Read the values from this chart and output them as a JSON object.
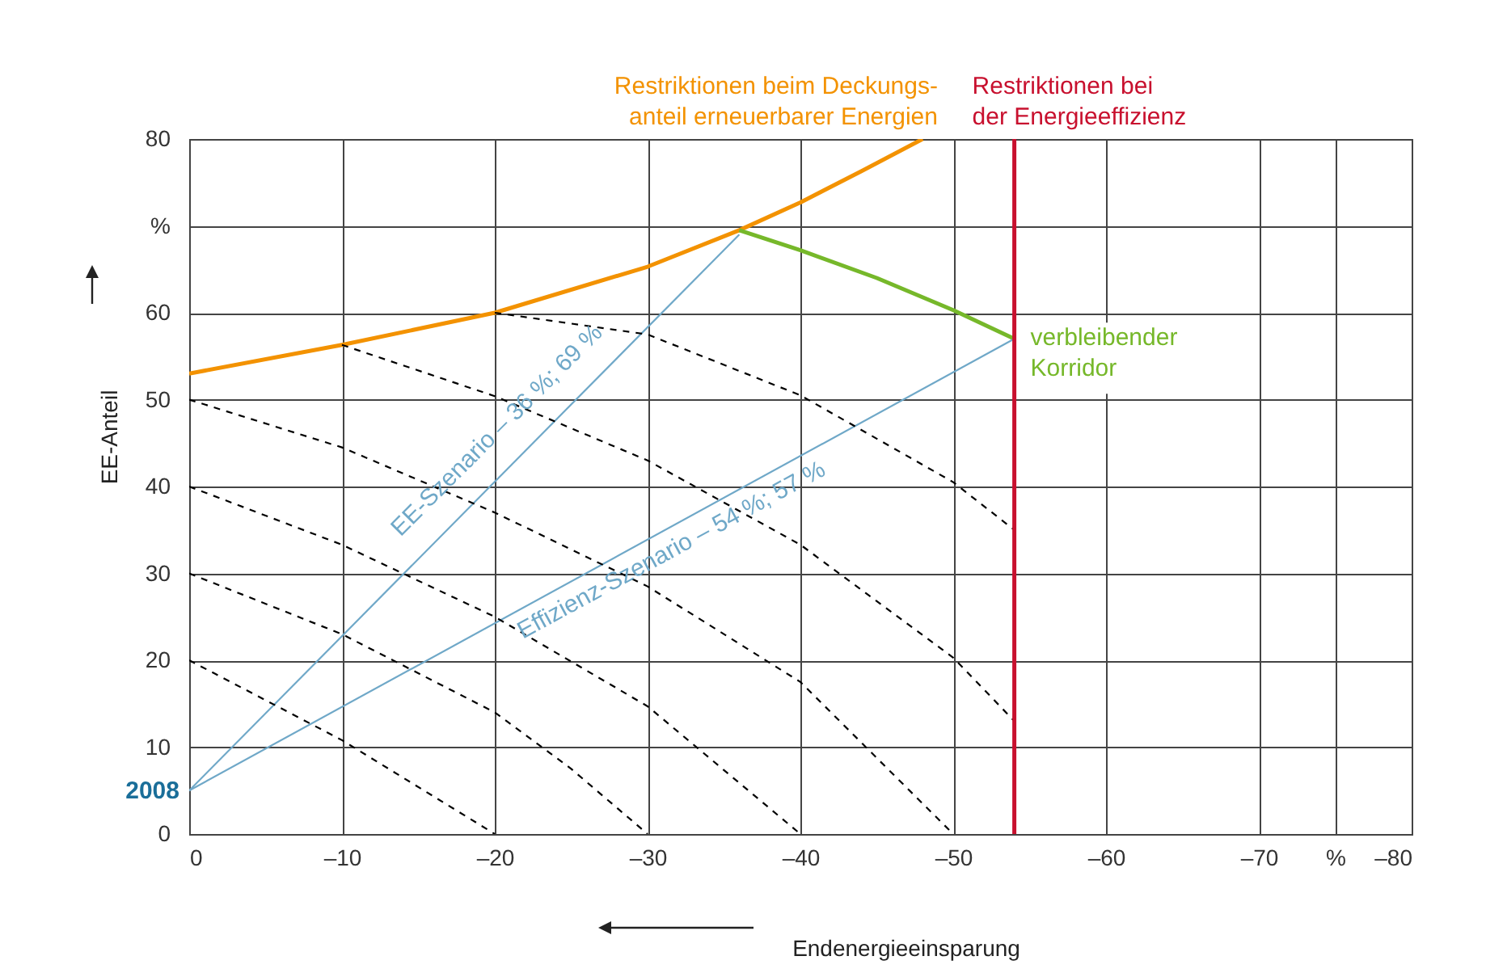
{
  "chart_data": {
    "type": "line",
    "xlabel": "Endenergieeinsparung",
    "ylabel": "EE-Anteil",
    "xlim": [
      0,
      -80
    ],
    "ylim": [
      0,
      80
    ],
    "xticks": [
      0,
      {
        "value": -10,
        "label": "–10"
      },
      {
        "value": -20,
        "label": "–20"
      },
      {
        "value": -30,
        "label": "–30"
      },
      {
        "value": -40,
        "label": "–40"
      },
      {
        "value": -50,
        "label": "–50"
      },
      {
        "value": -60,
        "label": "–60"
      },
      {
        "value": -70,
        "label": "–70"
      },
      {
        "value": -75,
        "label": "%"
      },
      {
        "value": -80,
        "label": "–80"
      }
    ],
    "yticks": [
      0,
      10,
      20,
      30,
      40,
      50,
      60,
      {
        "value": 70,
        "label": "%"
      },
      80
    ],
    "grid": true,
    "marker": "none",
    "line_style": "solid",
    "series": [
      {
        "color": "#f39200",
        "x": [
          0,
          -10,
          -20,
          -30,
          -36,
          -40,
          -44,
          -48
        ],
        "values": [
          53,
          56.3,
          60,
          65.3,
          69.5,
          72.7,
          76.3,
          80
        ]
      },
      {
        "color": "#76b82a",
        "x": [
          -36,
          -40,
          -45,
          -50,
          -54
        ],
        "values": [
          69.5,
          67.2,
          64,
          60.3,
          57
        ]
      },
      {
        "color": "#6fa8c8",
        "x": [
          0,
          -36
        ],
        "values": [
          5,
          69
        ]
      },
      {
        "color": "#6fa8c8",
        "x": [
          0,
          -54
        ],
        "values": [
          5,
          57
        ]
      },
      {
        "color": "#000000",
        "line_style": "dashed",
        "x": [
          0,
          -10,
          -20
        ],
        "values": [
          20,
          10.8,
          0
        ]
      },
      {
        "color": "#000000",
        "line_style": "dashed",
        "x": [
          0,
          -10,
          -20,
          -25,
          -30
        ],
        "values": [
          30,
          23,
          14,
          7.5,
          0
        ]
      },
      {
        "color": "#000000",
        "line_style": "dashed",
        "x": [
          0,
          -10,
          -20,
          -30,
          -40
        ],
        "values": [
          40,
          33.3,
          25,
          14.7,
          0
        ]
      },
      {
        "color": "#000000",
        "line_style": "dashed",
        "x": [
          0,
          -10,
          -20,
          -30,
          -40,
          -50
        ],
        "values": [
          50,
          44.5,
          37,
          28.5,
          17.5,
          0
        ]
      },
      {
        "color": "#000000",
        "line_style": "dashed",
        "x": [
          -10,
          -20,
          -30,
          -40,
          -50,
          -54
        ],
        "values": [
          56.3,
          50.4,
          43,
          33.3,
          20.3,
          13
        ]
      },
      {
        "color": "#000000",
        "line_style": "dashed",
        "x": [
          -20,
          -30,
          -40,
          -50,
          -54
        ],
        "values": [
          60,
          57.5,
          50.5,
          40.5,
          35
        ]
      }
    ],
    "ref_lines": [
      {
        "axis": "x",
        "value": -54,
        "label": "Restriktionen bei\nder Energieeffizienz",
        "color": "#c8102e"
      }
    ],
    "annotations": [
      "Restriktionen beim Deckungs-\nanteil erneuerbarer Energien",
      {
        "text": "2008",
        "x": 0,
        "y": 5
      },
      "EE-Szenario – 36 %; 69 %",
      "Effizienz-Szenario – 54 %; 57 %",
      {
        "text": "verbleibender\nKorridor",
        "x": -54,
        "y": 57
      }
    ]
  }
}
